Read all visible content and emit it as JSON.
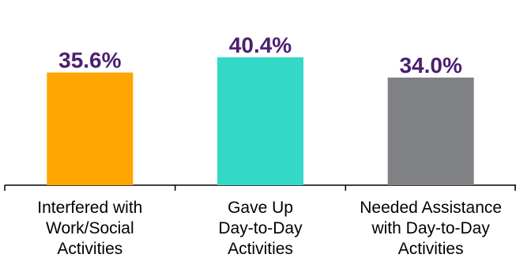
{
  "chart_data": {
    "type": "bar",
    "title": "",
    "xlabel": "",
    "ylabel": "",
    "ylim": [
      0,
      45
    ],
    "grid": false,
    "legend": "none",
    "categories": [
      [
        "Interfered with",
        "Work/Social",
        "Activities"
      ],
      [
        "Gave Up",
        "Day-to-Day",
        "Activities"
      ],
      [
        "Needed Assistance",
        "with Day-to-Day",
        "Activities"
      ]
    ],
    "values": [
      35.6,
      40.4,
      34.0
    ],
    "data_labels": [
      "35.6%",
      "40.4%",
      "34.0%"
    ],
    "colors": [
      "#FFA500",
      "#33D9C6",
      "#808184"
    ],
    "label_color": "#4B1F6E",
    "axis_color": "#000000"
  }
}
